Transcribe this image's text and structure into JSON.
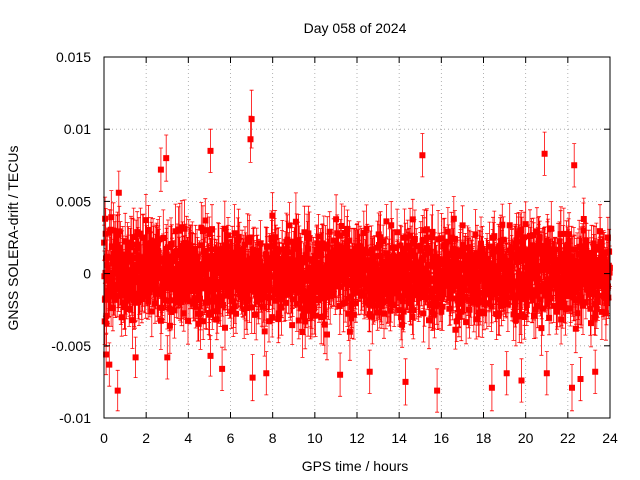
{
  "chart_data": {
    "type": "scatter",
    "title": "Day 058 of 2024",
    "xlabel": "GPS time / hours",
    "ylabel": "GNSS SOLERA-drift / TECUs",
    "xlim": [
      0,
      24
    ],
    "ylim": [
      -0.01,
      0.015
    ],
    "xticks": [
      0,
      2,
      4,
      6,
      8,
      10,
      12,
      14,
      16,
      18,
      20,
      22,
      24
    ],
    "xtick_labels": [
      "0",
      "2",
      "4",
      "6",
      "8",
      "10",
      "12",
      "14",
      "16",
      "18",
      "20",
      "22",
      "24"
    ],
    "yticks": [
      -0.01,
      -0.005,
      0,
      0.005,
      0.01,
      0.015
    ],
    "ytick_labels": [
      "-0.01",
      "-0.005",
      "0",
      "0.005",
      "0.01",
      "0.015"
    ],
    "grid": true,
    "series": [
      {
        "name": "SOLERA-drift",
        "color": "#ff0000",
        "marker": "square",
        "error_bars": true,
        "typical_error": 0.0015,
        "note": "dense series of ~2000 points spanning 0-24 h, values roughly within -0.006..0.006; notable outliers listed in points",
        "points": [
          {
            "x": 0.05,
            "y": 0.0038,
            "err": 0.0015
          },
          {
            "x": 0.1,
            "y": -0.0056,
            "err": 0.0014
          },
          {
            "x": 0.25,
            "y": -0.0063,
            "err": 0.0015
          },
          {
            "x": 0.65,
            "y": -0.0081,
            "err": 0.0014
          },
          {
            "x": 0.7,
            "y": 0.0056,
            "err": 0.0015
          },
          {
            "x": 1.5,
            "y": -0.0058,
            "err": 0.0014
          },
          {
            "x": 2.7,
            "y": 0.0072,
            "err": 0.0015
          },
          {
            "x": 2.95,
            "y": 0.008,
            "err": 0.0016
          },
          {
            "x": 3.0,
            "y": -0.0058,
            "err": 0.0015
          },
          {
            "x": 5.05,
            "y": 0.0085,
            "err": 0.0015
          },
          {
            "x": 5.05,
            "y": -0.0057,
            "err": 0.0014
          },
          {
            "x": 5.6,
            "y": -0.0066,
            "err": 0.0015
          },
          {
            "x": 6.95,
            "y": 0.0093,
            "err": 0.0016
          },
          {
            "x": 7.0,
            "y": 0.0107,
            "err": 0.002
          },
          {
            "x": 7.05,
            "y": -0.0072,
            "err": 0.0016
          },
          {
            "x": 7.7,
            "y": -0.0069,
            "err": 0.0015
          },
          {
            "x": 11.2,
            "y": -0.007,
            "err": 0.0015
          },
          {
            "x": 12.6,
            "y": -0.0068,
            "err": 0.0015
          },
          {
            "x": 14.3,
            "y": -0.0075,
            "err": 0.0016
          },
          {
            "x": 15.1,
            "y": 0.0082,
            "err": 0.0015
          },
          {
            "x": 15.8,
            "y": -0.0081,
            "err": 0.0015
          },
          {
            "x": 18.4,
            "y": -0.0079,
            "err": 0.0016
          },
          {
            "x": 19.1,
            "y": -0.0069,
            "err": 0.0015
          },
          {
            "x": 19.8,
            "y": -0.0074,
            "err": 0.0015
          },
          {
            "x": 20.9,
            "y": 0.0083,
            "err": 0.0015
          },
          {
            "x": 21.0,
            "y": -0.0069,
            "err": 0.0015
          },
          {
            "x": 22.2,
            "y": -0.0079,
            "err": 0.0016
          },
          {
            "x": 22.3,
            "y": 0.0075,
            "err": 0.0015
          },
          {
            "x": 22.6,
            "y": -0.0073,
            "err": 0.0015
          },
          {
            "x": 23.3,
            "y": -0.0068,
            "err": 0.0015
          },
          {
            "x": 23.9,
            "y": 0.0025,
            "err": 0.0014
          }
        ]
      }
    ]
  }
}
